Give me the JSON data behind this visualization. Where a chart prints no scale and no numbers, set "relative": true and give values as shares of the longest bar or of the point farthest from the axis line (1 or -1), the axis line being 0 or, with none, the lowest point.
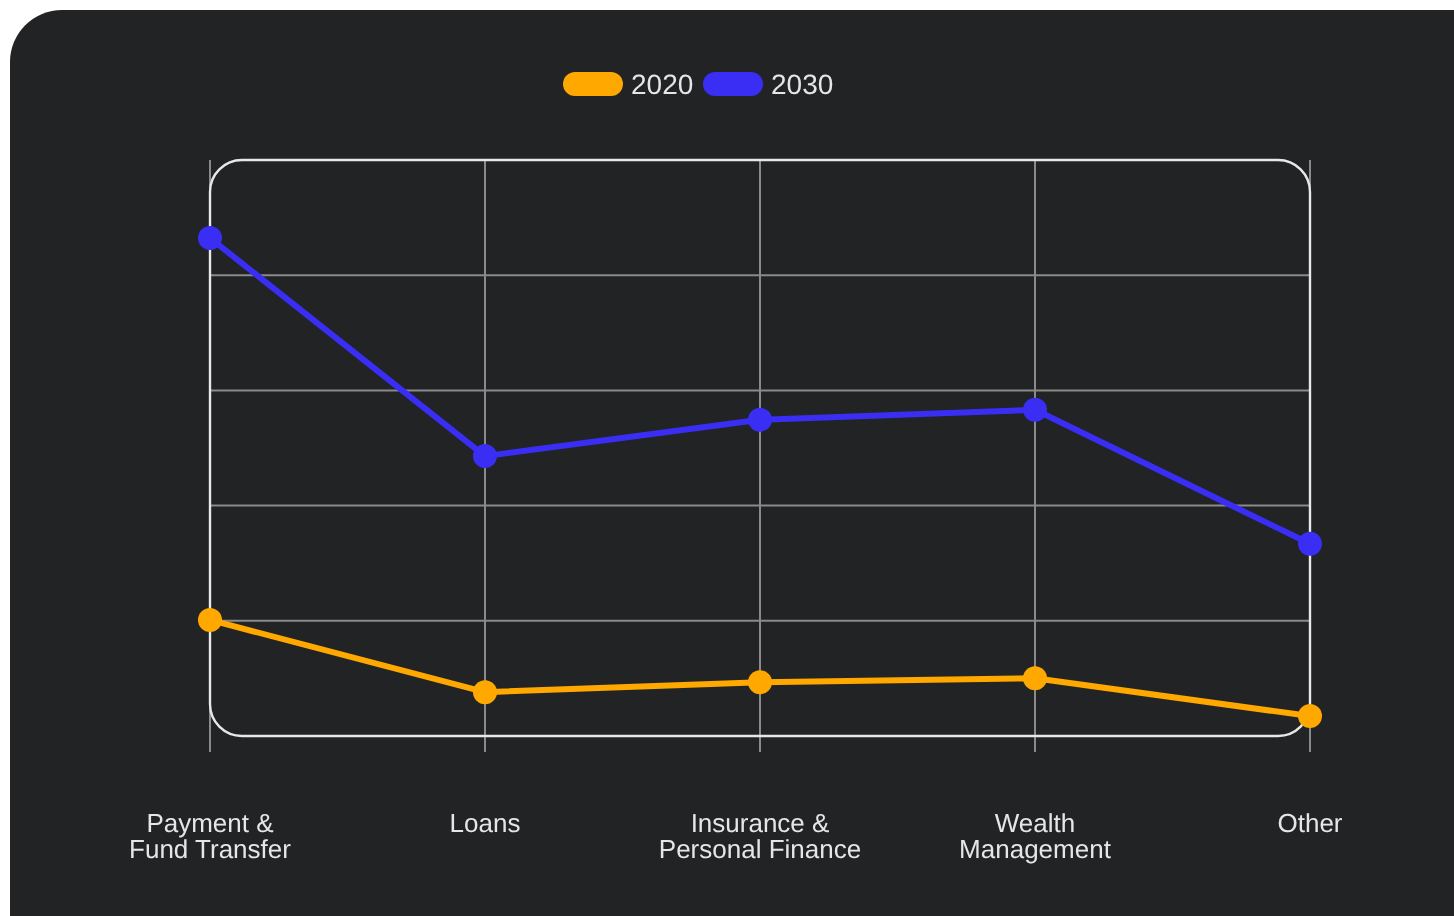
{
  "chart_data": {
    "type": "line",
    "relative": true,
    "categories": [
      "Payment & Fund Transfer",
      "Loans",
      "Insurance & Personal Finance",
      "Wealth Management",
      "Other"
    ],
    "series": [
      {
        "name": "2020",
        "color": "#ffa800",
        "values": [
          0.233,
          0.088,
          0.108,
          0.116,
          0.04
        ]
      },
      {
        "name": "2030",
        "color": "#3a2ef5",
        "values": [
          1,
          0.562,
          0.635,
          0.655,
          0.386
        ]
      }
    ],
    "grid": true,
    "legend": "top",
    "marker": "circle",
    "line_style": "solid"
  }
}
